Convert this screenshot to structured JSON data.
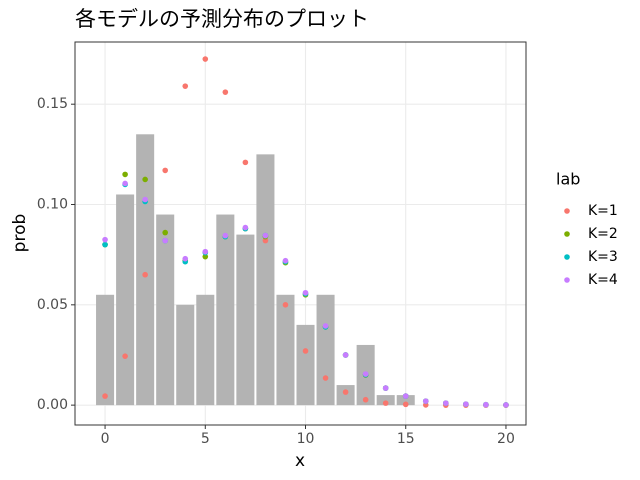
{
  "chart_data": {
    "type": "scatter",
    "title": "各モデルの予測分布のプロット",
    "x_label": "x",
    "y_label": "prob",
    "legend_title": "lab",
    "legend_position": "right",
    "grid": true,
    "xlim": [
      -1.5,
      21
    ],
    "ylim": [
      -0.0099,
      0.181
    ],
    "xticks": [
      0,
      5,
      10,
      15,
      20
    ],
    "yticks": [
      {
        "value": 0,
        "label": "0.00"
      },
      {
        "value": 0.05,
        "label": "0.05"
      },
      {
        "value": 0.1,
        "label": "0.10"
      },
      {
        "value": 0.15,
        "label": "0.15"
      }
    ],
    "bars": {
      "color": "#b3b3b3",
      "x": [
        0,
        1,
        2,
        3,
        4,
        5,
        6,
        7,
        8,
        9,
        10,
        11,
        12,
        13,
        14,
        15
      ],
      "values": [
        0.055,
        0.105,
        0.135,
        0.095,
        0.05,
        0.055,
        0.095,
        0.085,
        0.125,
        0.055,
        0.04,
        0.055,
        0.01,
        0.03,
        0.005,
        0.005
      ]
    },
    "x": [
      0,
      1,
      2,
      3,
      4,
      5,
      6,
      7,
      8,
      9,
      10,
      11,
      12,
      13,
      14,
      15,
      16,
      17,
      18,
      19,
      20
    ],
    "series": [
      {
        "name": "K=1",
        "color": "#F8766D",
        "values": [
          0.0045,
          0.0244,
          0.065,
          0.117,
          0.159,
          0.1725,
          0.156,
          0.121,
          0.082,
          0.05,
          0.027,
          0.0135,
          0.0065,
          0.0027,
          0.001,
          0.0004,
          0.0001,
          0,
          0,
          0,
          0
        ]
      },
      {
        "name": "K=2",
        "color": "#7CAE00",
        "values": [
          0.08,
          0.115,
          0.1125,
          0.086,
          0.072,
          0.074,
          0.084,
          0.088,
          0.084,
          0.071,
          0.055,
          0.039,
          0.025,
          0.015,
          0.0085,
          0.0045,
          0.002,
          0.001,
          0.0005,
          0.0002,
          0.0001
        ]
      },
      {
        "name": "K=3",
        "color": "#00BFC4",
        "values": [
          0.08,
          0.11,
          0.1015,
          0.082,
          0.0715,
          0.076,
          0.084,
          0.088,
          0.0845,
          0.0715,
          0.0555,
          0.039,
          0.025,
          0.0152,
          0.0085,
          0.0045,
          0.002,
          0.001,
          0.0005,
          0.0002,
          0.0001
        ]
      },
      {
        "name": "K=4",
        "color": "#C77CFF",
        "values": [
          0.0825,
          0.1105,
          0.1025,
          0.082,
          0.073,
          0.0765,
          0.0845,
          0.0885,
          0.0845,
          0.072,
          0.056,
          0.0395,
          0.025,
          0.0155,
          0.0085,
          0.0045,
          0.002,
          0.001,
          0.0005,
          0.0002,
          0.0001
        ]
      }
    ]
  }
}
